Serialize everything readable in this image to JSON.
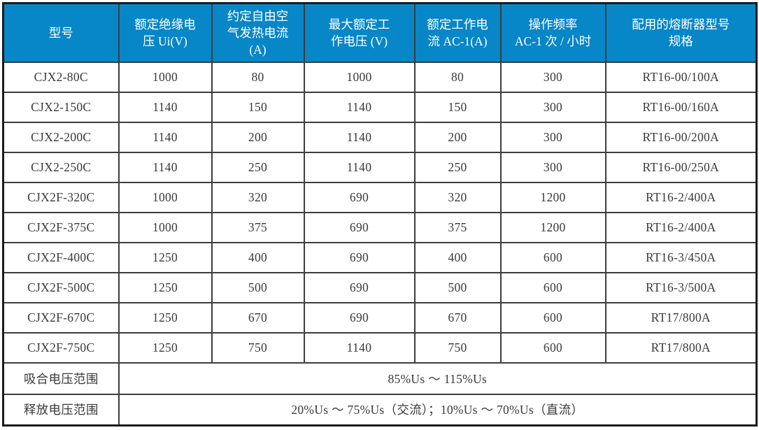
{
  "table": {
    "headers": [
      "型号",
      "额定绝缘电\n压 Ui(V)",
      "约定自由空\n气发热电流\n(A)",
      "最大额定工\n作电压 (V)",
      "额定工作电\n流 AC-1(A)",
      "操作频率\nAC-1 次 / 小时",
      "配用的熔断器型号\n规格"
    ],
    "rows": [
      [
        "CJX2-80C",
        "1000",
        "80",
        "1000",
        "80",
        "300",
        "RT16-00/100A"
      ],
      [
        "CJX2-150C",
        "1140",
        "150",
        "1140",
        "150",
        "300",
        "RT16-00/160A"
      ],
      [
        "CJX2-200C",
        "1140",
        "200",
        "1140",
        "200",
        "300",
        "RT16-00/200A"
      ],
      [
        "CJX2-250C",
        "1140",
        "250",
        "1140",
        "250",
        "300",
        "RT16-00/250A"
      ],
      [
        "CJX2F-320C",
        "1000",
        "320",
        "690",
        "320",
        "1200",
        "RT16-2/400A"
      ],
      [
        "CJX2F-375C",
        "1000",
        "375",
        "690",
        "375",
        "1200",
        "RT16-2/400A"
      ],
      [
        "CJX2F-400C",
        "1250",
        "400",
        "690",
        "400",
        "600",
        "RT16-3/450A"
      ],
      [
        "CJX2F-500C",
        "1250",
        "500",
        "690",
        "500",
        "600",
        "RT16-3/500A"
      ],
      [
        "CJX2F-670C",
        "1250",
        "670",
        "690",
        "670",
        "600",
        "RT17/800A"
      ],
      [
        "CJX2F-750C",
        "1250",
        "750",
        "1140",
        "750",
        "600",
        "RT17/800A"
      ]
    ],
    "voltage_rows": [
      {
        "label": "吸合电压范围",
        "value": "85%Us ～ 115%Us"
      },
      {
        "label": "释放电压范围",
        "value": "20%Us ～ 75%Us（交流）；10%Us ～ 70%Us（直流）"
      }
    ],
    "colors": {
      "header_bg": "#0786C8",
      "header_text": "#FFFFFF",
      "body_text": "#3A3A3A",
      "border": "#3D3D3D"
    }
  }
}
